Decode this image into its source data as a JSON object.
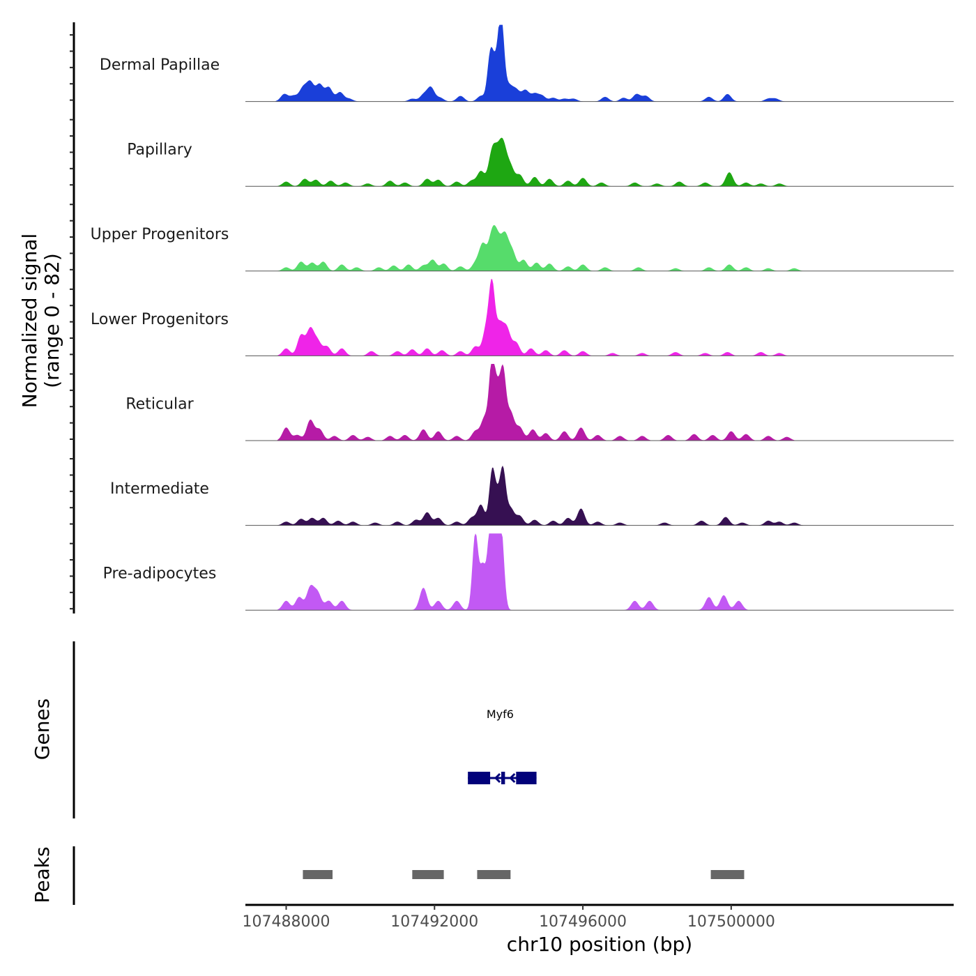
{
  "chart_data": {
    "type": "area",
    "title": "",
    "xlabel": "chr10 position (bp)",
    "ylabel": "Normalized signal\n(range 0 - 82)",
    "ylabel_lines": [
      "Normalized signal",
      "(range 0 - 82)"
    ],
    "ylim": [
      0,
      82
    ],
    "xlim": [
      107486900,
      107506000
    ],
    "x_ticks": [
      107488000,
      107492000,
      107496000,
      107500000
    ],
    "x_tick_labels": [
      "107488000",
      "107492000",
      "107496000",
      "107500000"
    ],
    "tracks": [
      {
        "name": "Dermal Papillae",
        "color": "#1a3fd9",
        "peaks": [
          [
            107487950,
            8
          ],
          [
            107488200,
            6
          ],
          [
            107488450,
            14
          ],
          [
            107488650,
            20
          ],
          [
            107488900,
            18
          ],
          [
            107489150,
            15
          ],
          [
            107489450,
            10
          ],
          [
            107489700,
            3
          ],
          [
            107491400,
            3
          ],
          [
            107491700,
            7
          ],
          [
            107491900,
            15
          ],
          [
            107492150,
            4
          ],
          [
            107492700,
            6
          ],
          [
            107493250,
            6
          ],
          [
            107493500,
            44
          ],
          [
            107493650,
            36
          ],
          [
            107493800,
            82
          ],
          [
            107494000,
            16
          ],
          [
            107494200,
            12
          ],
          [
            107494450,
            12
          ],
          [
            107494700,
            8
          ],
          [
            107494900,
            6
          ],
          [
            107495200,
            4
          ],
          [
            107495500,
            3
          ],
          [
            107495750,
            3
          ],
          [
            107496600,
            5
          ],
          [
            107497100,
            4
          ],
          [
            107497450,
            8
          ],
          [
            107497700,
            6
          ],
          [
            107499400,
            5
          ],
          [
            107499900,
            8
          ],
          [
            107501000,
            3
          ],
          [
            107501200,
            3
          ]
        ]
      },
      {
        "name": "Papillary",
        "color": "#1ea712",
        "peaks": [
          [
            107488000,
            5
          ],
          [
            107488500,
            8
          ],
          [
            107488800,
            7
          ],
          [
            107489200,
            6
          ],
          [
            107489600,
            4
          ],
          [
            107490200,
            3
          ],
          [
            107490800,
            6
          ],
          [
            107491200,
            4
          ],
          [
            107491800,
            8
          ],
          [
            107492100,
            7
          ],
          [
            107492600,
            5
          ],
          [
            107493000,
            6
          ],
          [
            107493250,
            16
          ],
          [
            107493550,
            34
          ],
          [
            107493700,
            24
          ],
          [
            107493850,
            40
          ],
          [
            107494050,
            20
          ],
          [
            107494300,
            12
          ],
          [
            107494700,
            10
          ],
          [
            107495100,
            8
          ],
          [
            107495600,
            6
          ],
          [
            107496000,
            9
          ],
          [
            107496500,
            4
          ],
          [
            107497400,
            4
          ],
          [
            107498000,
            3
          ],
          [
            107498600,
            5
          ],
          [
            107499300,
            4
          ],
          [
            107499950,
            15
          ],
          [
            107500400,
            4
          ],
          [
            107500800,
            3
          ],
          [
            107501300,
            3
          ]
        ]
      },
      {
        "name": "Upper Progenitors",
        "color": "#56dc6b",
        "peaks": [
          [
            107488000,
            4
          ],
          [
            107488400,
            10
          ],
          [
            107488700,
            9
          ],
          [
            107489000,
            10
          ],
          [
            107489500,
            7
          ],
          [
            107489900,
            4
          ],
          [
            107490500,
            4
          ],
          [
            107490900,
            6
          ],
          [
            107491300,
            7
          ],
          [
            107491700,
            6
          ],
          [
            107491950,
            12
          ],
          [
            107492250,
            8
          ],
          [
            107492700,
            5
          ],
          [
            107493100,
            8
          ],
          [
            107493300,
            28
          ],
          [
            107493550,
            36
          ],
          [
            107493700,
            28
          ],
          [
            107493900,
            36
          ],
          [
            107494100,
            20
          ],
          [
            107494400,
            12
          ],
          [
            107494750,
            9
          ],
          [
            107495100,
            8
          ],
          [
            107495600,
            5
          ],
          [
            107496000,
            7
          ],
          [
            107496600,
            4
          ],
          [
            107497500,
            4
          ],
          [
            107498500,
            3
          ],
          [
            107499400,
            4
          ],
          [
            107499950,
            7
          ],
          [
            107500400,
            4
          ],
          [
            107501000,
            3
          ],
          [
            107501700,
            3
          ]
        ]
      },
      {
        "name": "Lower Progenitors",
        "color": "#ef24e8",
        "peaks": [
          [
            107488000,
            8
          ],
          [
            107488400,
            22
          ],
          [
            107488650,
            28
          ],
          [
            107488850,
            15
          ],
          [
            107489100,
            10
          ],
          [
            107489500,
            8
          ],
          [
            107490300,
            5
          ],
          [
            107491000,
            5
          ],
          [
            107491400,
            7
          ],
          [
            107491800,
            8
          ],
          [
            107492200,
            6
          ],
          [
            107492700,
            5
          ],
          [
            107493100,
            10
          ],
          [
            107493400,
            30
          ],
          [
            107493550,
            70
          ],
          [
            107493750,
            32
          ],
          [
            107493950,
            28
          ],
          [
            107494200,
            14
          ],
          [
            107494600,
            8
          ],
          [
            107495000,
            6
          ],
          [
            107495500,
            6
          ],
          [
            107496000,
            5
          ],
          [
            107496800,
            3
          ],
          [
            107497600,
            3
          ],
          [
            107498500,
            4
          ],
          [
            107499300,
            3
          ],
          [
            107499900,
            4
          ],
          [
            107500800,
            4
          ],
          [
            107501300,
            3
          ]
        ]
      },
      {
        "name": "Reticular",
        "color": "#b61ba6",
        "peaks": [
          [
            107488000,
            14
          ],
          [
            107488300,
            6
          ],
          [
            107488650,
            22
          ],
          [
            107488900,
            12
          ],
          [
            107489300,
            5
          ],
          [
            107489800,
            6
          ],
          [
            107490200,
            4
          ],
          [
            107490800,
            5
          ],
          [
            107491200,
            6
          ],
          [
            107491700,
            12
          ],
          [
            107492100,
            10
          ],
          [
            107492600,
            5
          ],
          [
            107493100,
            10
          ],
          [
            107493350,
            24
          ],
          [
            107493550,
            82
          ],
          [
            107493700,
            45
          ],
          [
            107493850,
            70
          ],
          [
            107494050,
            30
          ],
          [
            107494300,
            14
          ],
          [
            107494650,
            12
          ],
          [
            107495000,
            8
          ],
          [
            107495500,
            10
          ],
          [
            107495950,
            14
          ],
          [
            107496400,
            6
          ],
          [
            107497000,
            5
          ],
          [
            107497600,
            5
          ],
          [
            107498300,
            6
          ],
          [
            107499000,
            7
          ],
          [
            107499500,
            6
          ],
          [
            107500000,
            10
          ],
          [
            107500400,
            7
          ],
          [
            107501000,
            5
          ],
          [
            107501500,
            4
          ]
        ]
      },
      {
        "name": "Intermediate",
        "color": "#361052",
        "peaks": [
          [
            107488000,
            4
          ],
          [
            107488400,
            7
          ],
          [
            107488700,
            8
          ],
          [
            107489000,
            8
          ],
          [
            107489400,
            5
          ],
          [
            107489800,
            4
          ],
          [
            107490400,
            3
          ],
          [
            107491000,
            4
          ],
          [
            107491500,
            6
          ],
          [
            107491800,
            14
          ],
          [
            107492100,
            8
          ],
          [
            107492600,
            4
          ],
          [
            107493000,
            8
          ],
          [
            107493250,
            22
          ],
          [
            107493550,
            52
          ],
          [
            107493700,
            28
          ],
          [
            107493850,
            52
          ],
          [
            107494050,
            18
          ],
          [
            107494300,
            10
          ],
          [
            107494700,
            6
          ],
          [
            107495200,
            5
          ],
          [
            107495600,
            8
          ],
          [
            107495950,
            18
          ],
          [
            107496400,
            4
          ],
          [
            107497000,
            3
          ],
          [
            107498200,
            3
          ],
          [
            107499200,
            5
          ],
          [
            107499850,
            9
          ],
          [
            107500300,
            3
          ],
          [
            107501000,
            5
          ],
          [
            107501300,
            4
          ],
          [
            107501700,
            3
          ]
        ]
      },
      {
        "name": "Pre-adipocytes",
        "color": "#c259f4",
        "peaks": [
          [
            107488000,
            10
          ],
          [
            107488350,
            14
          ],
          [
            107488650,
            24
          ],
          [
            107488850,
            18
          ],
          [
            107489150,
            10
          ],
          [
            107489500,
            10
          ],
          [
            107491700,
            24
          ],
          [
            107492100,
            10
          ],
          [
            107492600,
            10
          ],
          [
            107493100,
            82
          ],
          [
            107493300,
            45
          ],
          [
            107493500,
            82
          ],
          [
            107493650,
            82
          ],
          [
            107493800,
            82
          ],
          [
            107497400,
            10
          ],
          [
            107497800,
            10
          ],
          [
            107499400,
            14
          ],
          [
            107499800,
            16
          ],
          [
            107500200,
            10
          ]
        ]
      }
    ],
    "genes": [
      {
        "name": "Myf6",
        "start": 107492900,
        "end": 107494750,
        "strand": "-",
        "exons": [
          [
            107492900,
            107493500
          ],
          [
            107493800,
            107493900
          ],
          [
            107494200,
            107494750
          ]
        ]
      }
    ],
    "gene_color": "#02027a",
    "peaks_regions": [
      [
        107488450,
        107489250
      ],
      [
        107491400,
        107492250
      ],
      [
        107493150,
        107494050
      ],
      [
        107499450,
        107500350
      ]
    ],
    "peak_region_color": "#666666",
    "panel_labels": {
      "genes": "Genes",
      "peaks": "Peaks"
    }
  }
}
